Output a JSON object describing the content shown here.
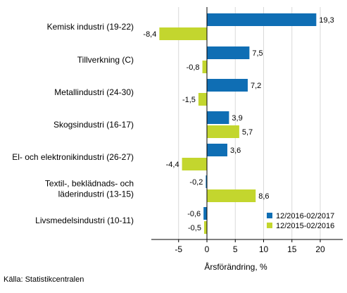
{
  "chart_data": {
    "type": "bar",
    "orientation": "horizontal",
    "categories": [
      [
        "Kemisk industri (19-22)"
      ],
      [
        "Tillverkning (C)"
      ],
      [
        "Metallindustri (24-30)"
      ],
      [
        "Skogsindustri (16-17)"
      ],
      [
        "El- och elektronikindustri (26-27)"
      ],
      [
        "Textil-, beklädnads- och",
        "läderindustri (13-15)"
      ],
      [
        "Livsmedelsindustri (10-11)"
      ]
    ],
    "series": [
      {
        "name": "12/2016-02/2017",
        "color": "#0f6eb4",
        "values": [
          19.3,
          7.5,
          7.2,
          3.9,
          3.6,
          -0.2,
          -0.6
        ],
        "labels": [
          "19,3",
          "7,5",
          "7,2",
          "3,9",
          "3,6",
          "-0,2",
          "-0,6"
        ]
      },
      {
        "name": "12/2015-02/2016",
        "color": "#c3d62e",
        "values": [
          -8.4,
          -0.8,
          -1.5,
          5.7,
          -4.4,
          8.6,
          -0.5
        ],
        "labels": [
          "-8,4",
          "-0,8",
          "-1,5",
          "5,7",
          "-4,4",
          "8,6",
          "-0,5"
        ]
      }
    ],
    "xlabel": "Årsförändring, %",
    "ylabel": "",
    "xlim": [
      -10,
      23
    ],
    "xticks": [
      -5,
      0,
      5,
      10,
      15,
      20
    ],
    "xtick_labels": [
      "-5",
      "0",
      "5",
      "10",
      "15",
      "20"
    ],
    "grid": "vertical",
    "legend_position": "bottom-right"
  },
  "source": "Källa: Statistikcentralen"
}
